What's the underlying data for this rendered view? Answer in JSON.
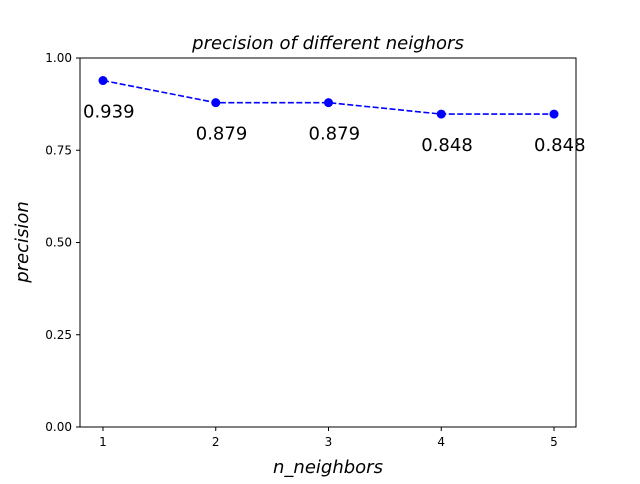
{
  "chart_data": {
    "type": "line",
    "title": "precision of different neighors",
    "xlabel": "n_neighbors",
    "ylabel": "precision",
    "x": [
      1,
      2,
      3,
      4,
      5
    ],
    "values": [
      0.939,
      0.879,
      0.879,
      0.848,
      0.848
    ],
    "data_labels": [
      "0.939",
      "0.879",
      "0.879",
      "0.848",
      "0.848"
    ],
    "x_ticks": [
      "1",
      "2",
      "3",
      "4",
      "5"
    ],
    "y_ticks": [
      "0.00",
      "0.25",
      "0.50",
      "0.75",
      "1.00"
    ],
    "y_tick_values": [
      0,
      0.25,
      0.5,
      0.75,
      1.0
    ],
    "xlim": [
      0.8,
      5.2
    ],
    "ylim": [
      0,
      1
    ],
    "grid": false,
    "line_style": "dashed",
    "marker": "circle",
    "color": "#0000ff"
  }
}
